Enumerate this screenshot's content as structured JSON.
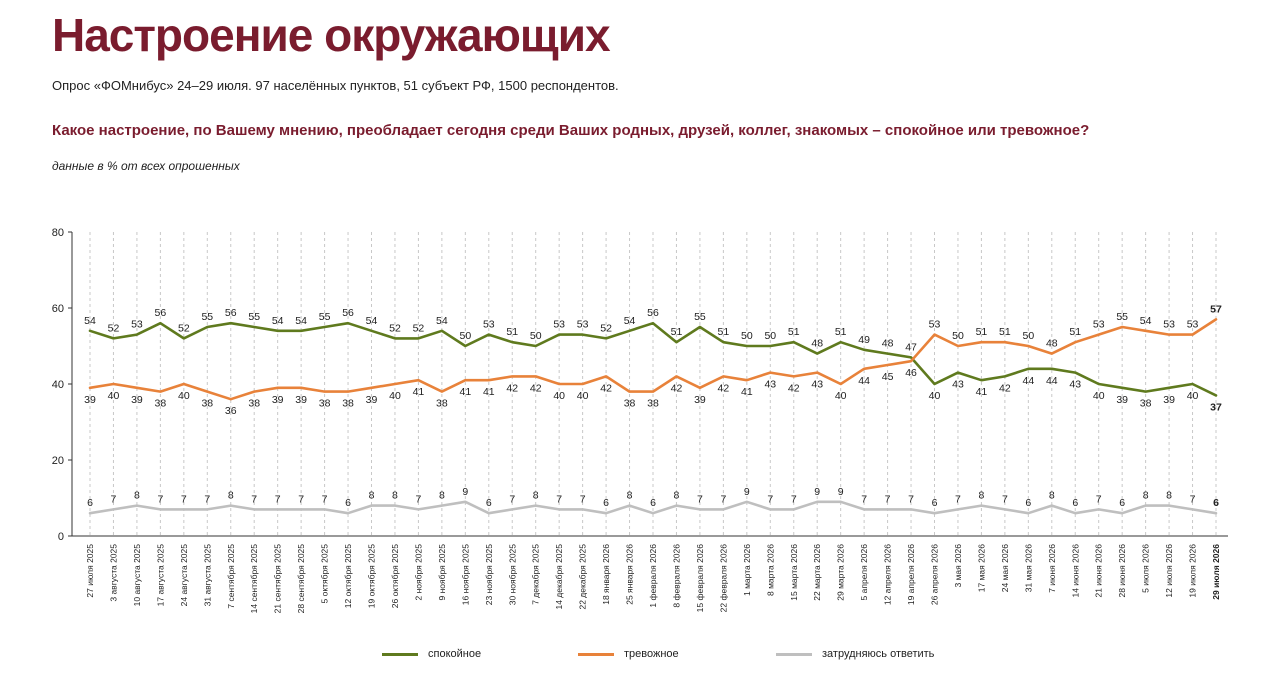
{
  "header": {
    "title": "Настроение окружающих",
    "subtitle": "Опрос «ФОМнибус» 24–29 июля. 97 населённых пунктов, 51 субъект РФ, 1500 респондентов.",
    "question": "Какое настроение, по Вашему мнению, преобладает сегодня среди Ваших родных, друзей, коллег, знакомых – спокойное или тревожное?",
    "note": "данные в % от всех опрошенных"
  },
  "chart_data": {
    "type": "line",
    "ylim": [
      0,
      80
    ],
    "yticks": [
      "0",
      "20",
      "40",
      "60",
      "80"
    ],
    "grid": "vertical dashed",
    "legend_position": "bottom",
    "x": [
      "27 июля 2025",
      "3 августа 2025",
      "10 августа 2025",
      "17 августа 2025",
      "24 августа 2025",
      "31 августа 2025",
      "7 сентября 2025",
      "14 сентября 2025",
      "21 сентября 2025",
      "28 сентября 2025",
      "5 октября 2025",
      "12 октября 2025",
      "19 октября 2025",
      "26 октября 2025",
      "2 ноября 2025",
      "9 ноября 2025",
      "16 ноября 2025",
      "23 ноября 2025",
      "30 ноября 2025",
      "7 декабря 2025",
      "14 декабря 2025",
      "22 декабря 2025",
      "18 января 2026",
      "25 января 2026",
      "1 февраля 2026",
      "8 февраля 2026",
      "15 февраля 2026",
      "22 февраля 2026",
      "1 марта 2026",
      "8 марта 2026",
      "15 марта 2026",
      "22 марта 2026",
      "29 марта 2026",
      "5 апреля 2026",
      "12 апреля 2026",
      "19 апреля 2026",
      "26 апреля 2026",
      "3 мая 2026",
      "17 мая 2026",
      "24 мая 2026",
      "31 мая 2026",
      "7 июня 2026",
      "14 июня 2026",
      "21 июня 2026",
      "28 июня 2026",
      "5 июля 2026",
      "12 июля 2026",
      "19 июля 2026",
      "29 июля 2026"
    ],
    "series": [
      {
        "name": "спокойное",
        "color": "#5f7a1e",
        "values": [
          54,
          52,
          53,
          56,
          52,
          55,
          56,
          55,
          54,
          54,
          55,
          56,
          54,
          52,
          52,
          54,
          50,
          53,
          51,
          50,
          53,
          53,
          52,
          54,
          56,
          51,
          55,
          51,
          50,
          50,
          51,
          48,
          51,
          49,
          48,
          47,
          40,
          43,
          41,
          42,
          44,
          44,
          43,
          40,
          39,
          38,
          39,
          40,
          37
        ],
        "label_side": [
          "above",
          "above",
          "above",
          "above",
          "above",
          "above",
          "above",
          "above",
          "above",
          "above",
          "above",
          "above",
          "above",
          "above",
          "above",
          "above",
          "above",
          "above",
          "above",
          "above",
          "above",
          "above",
          "above",
          "above",
          "above",
          "above",
          "above",
          "above",
          "above",
          "above",
          "above",
          "above",
          "above",
          "above",
          "above",
          "above",
          "below",
          "below",
          "below",
          "below",
          "below",
          "below",
          "below",
          "below",
          "below",
          "below",
          "below",
          "below",
          "below"
        ]
      },
      {
        "name": "тревожное",
        "color": "#e8823a",
        "values": [
          39,
          40,
          39,
          38,
          40,
          38,
          36,
          38,
          39,
          39,
          38,
          38,
          39,
          40,
          41,
          38,
          41,
          41,
          42,
          42,
          40,
          40,
          42,
          38,
          38,
          42,
          39,
          42,
          41,
          43,
          42,
          43,
          40,
          44,
          45,
          46,
          53,
          50,
          51,
          51,
          50,
          48,
          51,
          53,
          55,
          54,
          53,
          53,
          57
        ],
        "label_side": [
          "below",
          "below",
          "below",
          "below",
          "below",
          "below",
          "below",
          "below",
          "below",
          "below",
          "below",
          "below",
          "below",
          "below",
          "below",
          "below",
          "below",
          "below",
          "below",
          "below",
          "below",
          "below",
          "below",
          "below",
          "below",
          "below",
          "below",
          "below",
          "below",
          "below",
          "below",
          "below",
          "below",
          "below",
          "below",
          "below",
          "above",
          "above",
          "above",
          "above",
          "above",
          "above",
          "above",
          "above",
          "above",
          "above",
          "above",
          "above",
          "above"
        ]
      },
      {
        "name": "затрудняюсь ответить",
        "color": "#bfbfbf",
        "values": [
          6,
          7,
          8,
          7,
          7,
          7,
          8,
          7,
          7,
          7,
          7,
          6,
          8,
          8,
          7,
          8,
          9,
          6,
          7,
          8,
          7,
          7,
          6,
          8,
          6,
          8,
          7,
          7,
          9,
          7,
          7,
          9,
          9,
          7,
          7,
          7,
          6,
          7,
          8,
          7,
          6,
          8,
          6,
          7,
          6,
          8,
          8,
          7,
          6
        ],
        "label_side": [
          "above",
          "above",
          "above",
          "above",
          "above",
          "above",
          "above",
          "above",
          "above",
          "above",
          "above",
          "above",
          "above",
          "above",
          "above",
          "above",
          "above",
          "above",
          "above",
          "above",
          "above",
          "above",
          "above",
          "above",
          "above",
          "above",
          "above",
          "above",
          "above",
          "above",
          "above",
          "above",
          "above",
          "above",
          "above",
          "above",
          "above",
          "above",
          "above",
          "above",
          "above",
          "above",
          "above",
          "above",
          "above",
          "above",
          "above",
          "above",
          "above"
        ]
      }
    ]
  }
}
